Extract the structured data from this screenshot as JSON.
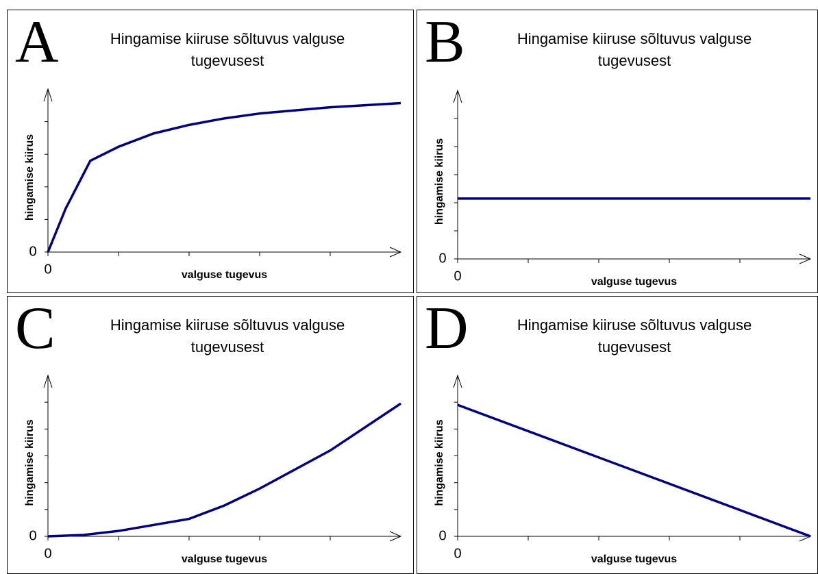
{
  "chart_data": [
    {
      "type": "line",
      "panel": "A",
      "title": [
        "Hingamise kiiruse sõltuvus valguse",
        "tugevusest"
      ],
      "xlabel": "valguse tugevus",
      "ylabel": "hingamise kiirus",
      "x": [
        0,
        0.25,
        0.6,
        1,
        1.5,
        2,
        2.5,
        3,
        4,
        5
      ],
      "values": [
        0,
        1.33,
        2.8,
        3.23,
        3.64,
        3.9,
        4.1,
        4.25,
        4.44,
        4.57
      ],
      "color": "#000080",
      "xlim": [
        0,
        5
      ],
      "ylim": [
        0,
        5
      ],
      "xticks": [
        0,
        {
          "value": 1,
          "label": null
        },
        {
          "value": 2,
          "label": null
        },
        {
          "value": 3,
          "label": null
        },
        {
          "value": 4,
          "label": null
        }
      ],
      "yticks": [
        0,
        {
          "value": 1,
          "label": null
        },
        {
          "value": 2,
          "label": null
        },
        {
          "value": 3,
          "label": null
        },
        {
          "value": 4,
          "label": null
        }
      ]
    },
    {
      "type": "line",
      "panel": "B",
      "title": [
        "Hingamise kiiruse sõltuvus valguse",
        "tugevusest"
      ],
      "xlabel": "valguse tugevus",
      "ylabel": "hingamise kiirus",
      "x": [
        0,
        5
      ],
      "values": [
        2.15,
        2.15
      ],
      "color": "#000080",
      "xlim": [
        0,
        5
      ],
      "ylim": [
        0,
        6
      ],
      "xticks": [
        0,
        {
          "value": 1,
          "label": null
        },
        {
          "value": 2,
          "label": null
        },
        {
          "value": 3,
          "label": null
        },
        {
          "value": 4,
          "label": null
        }
      ],
      "yticks": [
        0,
        {
          "value": 1,
          "label": null
        },
        {
          "value": 2,
          "label": null
        },
        {
          "value": 3,
          "label": null
        },
        {
          "value": 4,
          "label": null
        },
        {
          "value": 5,
          "label": null
        }
      ]
    },
    {
      "type": "line",
      "panel": "C",
      "title": [
        "Hingamise kiiruse sõltuvus valguse",
        "tugevusest"
      ],
      "xlabel": "valguse tugevus",
      "ylabel": "hingamise kiirus",
      "x": [
        0,
        0.5,
        1,
        2,
        2.5,
        3,
        4,
        5
      ],
      "values": [
        0,
        0.05,
        0.2,
        0.65,
        1.15,
        1.78,
        3.2,
        4.95
      ],
      "color": "#000080",
      "xlim": [
        0,
        5
      ],
      "ylim": [
        0,
        6
      ],
      "xticks": [
        0,
        {
          "value": 1,
          "label": null
        },
        {
          "value": 2,
          "label": null
        },
        {
          "value": 3,
          "label": null
        },
        {
          "value": 4,
          "label": null
        }
      ],
      "yticks": [
        0,
        {
          "value": 1,
          "label": null
        },
        {
          "value": 2,
          "label": null
        },
        {
          "value": 3,
          "label": null
        },
        {
          "value": 4,
          "label": null
        },
        {
          "value": 5,
          "label": null
        }
      ]
    },
    {
      "type": "line",
      "panel": "D",
      "title": [
        "Hingamise kiiruse sõltuvus valguse",
        "tugevusest"
      ],
      "xlabel": "valguse tugevus",
      "ylabel": "hingamise kiirus",
      "x": [
        0,
        5
      ],
      "values": [
        4.9,
        0
      ],
      "color": "#000080",
      "xlim": [
        0,
        5
      ],
      "ylim": [
        0,
        6
      ],
      "xticks": [
        0,
        {
          "value": 1,
          "label": null
        },
        {
          "value": 2,
          "label": null
        },
        {
          "value": 3,
          "label": null
        },
        {
          "value": 4,
          "label": null
        }
      ],
      "yticks": [
        0,
        {
          "value": 1,
          "label": null
        },
        {
          "value": 2,
          "label": null
        },
        {
          "value": 3,
          "label": null
        },
        {
          "value": 4,
          "label": null
        },
        {
          "value": 5,
          "label": null
        }
      ]
    }
  ]
}
